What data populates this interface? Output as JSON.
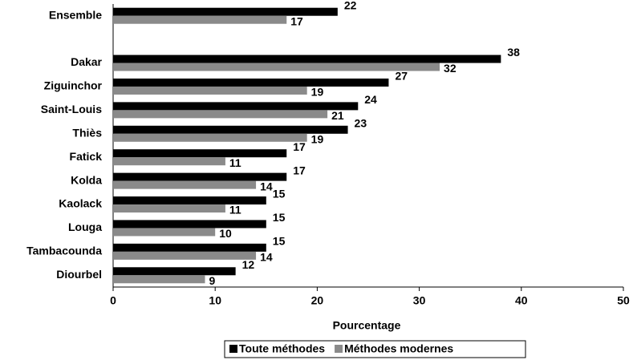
{
  "chart_data": {
    "type": "hbar",
    "categories": [
      "Ensemble",
      null,
      "Dakar",
      "Ziguinchor",
      "Saint-Louis",
      "Thiès",
      "Fatick",
      "Kolda",
      "Kaolack",
      "Louga",
      "Tambacounda",
      "Diourbel"
    ],
    "series": [
      {
        "name": "Toute méthodes",
        "color": "#000000",
        "values": [
          22,
          null,
          38,
          27,
          24,
          23,
          17,
          17,
          15,
          15,
          15,
          12
        ]
      },
      {
        "name": "Méthodes modernes",
        "color": "#8a8a8a",
        "values": [
          17,
          null,
          32,
          19,
          21,
          19,
          11,
          14,
          11,
          10,
          14,
          9
        ]
      }
    ],
    "xlabel": "Pourcentage",
    "xlim": [
      0,
      50
    ],
    "xticks": [
      0,
      10,
      20,
      30,
      40,
      50
    ],
    "legend": "bottom"
  }
}
